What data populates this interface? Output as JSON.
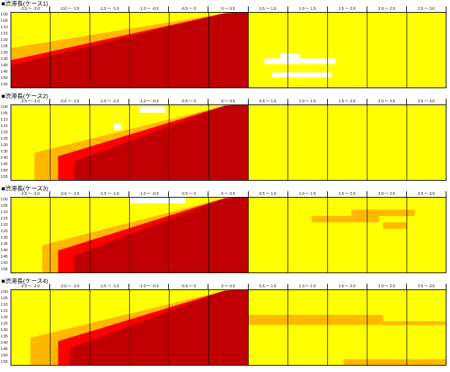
{
  "chart_data": {
    "type": "heatmap",
    "columns": [
      "-2.5 ～ -2.0",
      "-2.0 ～ -1.5",
      "-1.5 ～ -1.0",
      "-1.0 ～ -0.5",
      "-0.5 ～ 0",
      "0 ～ 0.5",
      "0.5 ～ 1.0",
      "1.0 ～ 1.5",
      "1.5 ～ 2.0",
      "2.0 ～ 2.5",
      "2.5 ～ 3.0"
    ],
    "rows": [
      "1:00",
      "1:05",
      "1:10",
      "1:15",
      "1:20",
      "1:25",
      "1:30",
      "1:35",
      "1:40",
      "1:45",
      "1:50",
      "1:55"
    ],
    "legend": "none",
    "colors": {
      "0": "#ffffff",
      "1": "#ffff00",
      "2": "#ffb800",
      "3": "#ff0000",
      "4": "#c00000"
    },
    "panels": [
      {
        "title": "■渋滞長(ケース1)",
        "bands": [
          {
            "c": 2,
            "yTop": 0.5,
            "yBot": 12,
            "base": 0
          },
          {
            "c": 3,
            "yTop": 4,
            "yBot": 12,
            "base": 0
          },
          {
            "c": 4,
            "yTop": 5.5,
            "yBot": 12,
            "base": 0
          }
        ],
        "rects": [
          {
            "c": 1,
            "x0": 0,
            "x1": 0.3,
            "y0": 0.8,
            "y1": 1.5
          },
          {
            "c": 1,
            "x0": 4.3,
            "x1": 4.5,
            "y0": 0,
            "y1": 0.5
          },
          {
            "c": 0,
            "x0": 6.8,
            "x1": 7.3,
            "y0": 6.5,
            "y1": 7.3
          },
          {
            "c": 0,
            "x0": 6.4,
            "x1": 8.2,
            "y0": 7.3,
            "y1": 8.2
          },
          {
            "c": 0,
            "x0": 6.6,
            "x1": 8.1,
            "y0": 9.5,
            "y1": 10.3
          }
        ]
      },
      {
        "title": "■渋滞長(ケース2)",
        "bands": [
          {
            "c": 2,
            "yTop": 4,
            "yBot": 12,
            "base": 0.6
          },
          {
            "c": 3,
            "yTop": 5,
            "yBot": 12,
            "base": 1.2
          },
          {
            "c": 4,
            "yTop": 6.5,
            "yBot": 12,
            "base": 1.6
          }
        ],
        "rects": [
          {
            "c": 0,
            "x0": 2.6,
            "x1": 2.8,
            "y0": 3,
            "y1": 4
          },
          {
            "c": 0,
            "x0": 3.25,
            "x1": 3.9,
            "y0": 0.3,
            "y1": 1.3
          }
        ]
      },
      {
        "title": "■渋滞長(ケース3)",
        "bands": [
          {
            "c": 2,
            "yTop": 4,
            "yBot": 12,
            "base": 0.8
          },
          {
            "c": 3,
            "yTop": 5.5,
            "yBot": 12,
            "base": 1.2
          },
          {
            "c": 4,
            "yTop": 7,
            "yBot": 12,
            "base": 1.6
          }
        ],
        "rects": [
          {
            "c": 0,
            "x0": 3.0,
            "x1": 4.4,
            "y0": 0,
            "y1": 1
          },
          {
            "c": 2,
            "x0": 7.6,
            "x1": 9.3,
            "y0": 3,
            "y1": 4
          },
          {
            "c": 2,
            "x0": 8.6,
            "x1": 10.2,
            "y0": 2,
            "y1": 3
          },
          {
            "c": 2,
            "x0": 9.4,
            "x1": 10.0,
            "y0": 4,
            "y1": 5
          }
        ]
      },
      {
        "title": "■渋滞長(ケース4)",
        "bands": [
          {
            "c": 2,
            "yTop": 4,
            "yBot": 12,
            "base": 0.5
          },
          {
            "c": 3,
            "yTop": 5,
            "yBot": 12,
            "base": 1.2
          },
          {
            "c": 4,
            "yTop": 7,
            "yBot": 12,
            "base": 1.5
          }
        ],
        "rects": [
          {
            "c": 2,
            "x0": 6.0,
            "x1": 9.4,
            "y0": 4,
            "y1": 5
          },
          {
            "c": 2,
            "x0": 6.0,
            "x1": 11,
            "y0": 5,
            "y1": 5.6
          },
          {
            "c": 2,
            "x0": 8.4,
            "x1": 11,
            "y0": 11,
            "y1": 12
          }
        ]
      }
    ]
  }
}
